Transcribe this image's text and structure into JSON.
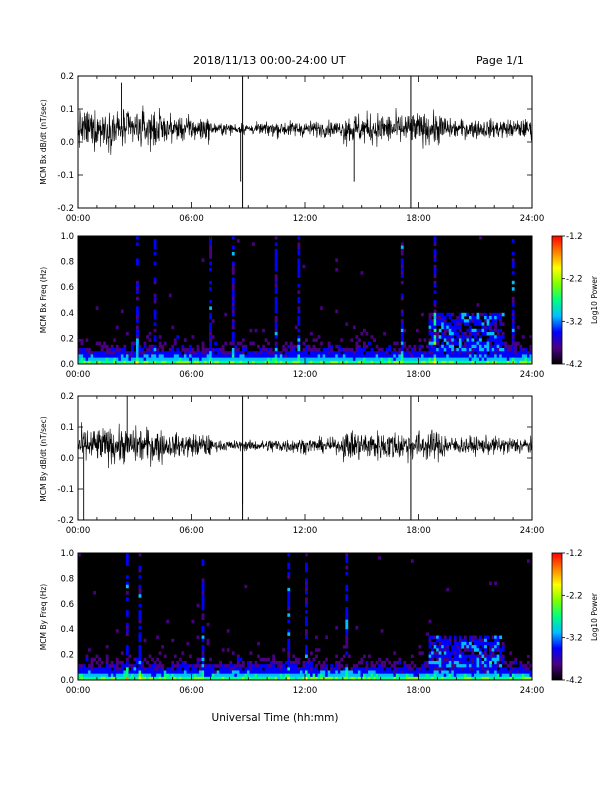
{
  "header": {
    "date_range": "2018/11/13  00:00-24:00 UT",
    "page": "Page 1/1"
  },
  "colors": {
    "trace": "#000000",
    "background_dark": "#000000",
    "colorbar": [
      "#000000",
      "#4b0082",
      "#0000ff",
      "#00bfff",
      "#00ff80",
      "#80ff00",
      "#ffff00",
      "#ff8000",
      "#ff0000"
    ]
  },
  "x_axis": {
    "title": "Universal Time (hh:mm)",
    "tick_labels": [
      "00:00",
      "06:00",
      "12:00",
      "18:00",
      "24:00"
    ]
  },
  "chart_data": [
    {
      "type": "line",
      "panel": "bx-dbdt",
      "ylabel": "MCM Bx dB/dt (nT/sec)",
      "ylim": [
        -0.2,
        0.2
      ],
      "xlim_hours": [
        0,
        24
      ],
      "yticks": [
        "0.2",
        "0.1",
        "0.0",
        "-0.1",
        "-0.2"
      ],
      "baseline": 0.04,
      "vertical_lines_hours": [
        8.7,
        17.6
      ],
      "notable_spikes": [
        {
          "x_hours": 2.3,
          "y": 0.18
        },
        {
          "x_hours": 8.6,
          "y": -0.12
        },
        {
          "x_hours": 14.6,
          "y": -0.12
        }
      ]
    },
    {
      "type": "heatmap",
      "panel": "bx-spectrogram",
      "ylabel": "MCM Bx Freq (Hz)",
      "ylim": [
        0.0,
        1.0
      ],
      "xlim_hours": [
        0,
        24
      ],
      "yticks": [
        "1.0",
        "0.8",
        "0.6",
        "0.4",
        "0.2",
        "0.0"
      ],
      "colorbar_label": "Log10 Power",
      "colorbar_ticks": [
        "-1.2",
        "-2.2",
        "-3.2",
        "-4.2"
      ],
      "colorbar_range": [
        -4.2,
        -1.2
      ],
      "enhanced_region": {
        "x_hours": [
          18.5,
          22.5
        ],
        "freq_hz": [
          0.1,
          0.4
        ]
      }
    },
    {
      "type": "line",
      "panel": "by-dbdt",
      "ylabel": "MCM By dB/dt (nT/sec)",
      "ylim": [
        -0.2,
        0.2
      ],
      "xlim_hours": [
        0,
        24
      ],
      "yticks": [
        "0.2",
        "0.1",
        "0.0",
        "-0.1",
        "-0.2"
      ],
      "baseline": 0.04,
      "vertical_lines_hours": [
        8.7,
        17.6
      ],
      "notable_spikes": [
        {
          "x_hours": 0.3,
          "y": -0.2
        },
        {
          "x_hours": 2.6,
          "y": 0.2
        },
        {
          "x_hours": 8.7,
          "y": -0.15
        }
      ]
    },
    {
      "type": "heatmap",
      "panel": "by-spectrogram",
      "ylabel": "MCM By Freq (Hz)",
      "ylim": [
        0.0,
        1.0
      ],
      "xlim_hours": [
        0,
        24
      ],
      "yticks": [
        "1.0",
        "0.8",
        "0.6",
        "0.4",
        "0.2",
        "0.0"
      ],
      "colorbar_label": "Log10 Power",
      "colorbar_ticks": [
        "-1.2",
        "-2.2",
        "-3.2",
        "-4.2"
      ],
      "colorbar_range": [
        -4.2,
        -1.2
      ],
      "enhanced_region": {
        "x_hours": [
          18.5,
          22.5
        ],
        "freq_hz": [
          0.1,
          0.35
        ]
      }
    }
  ]
}
